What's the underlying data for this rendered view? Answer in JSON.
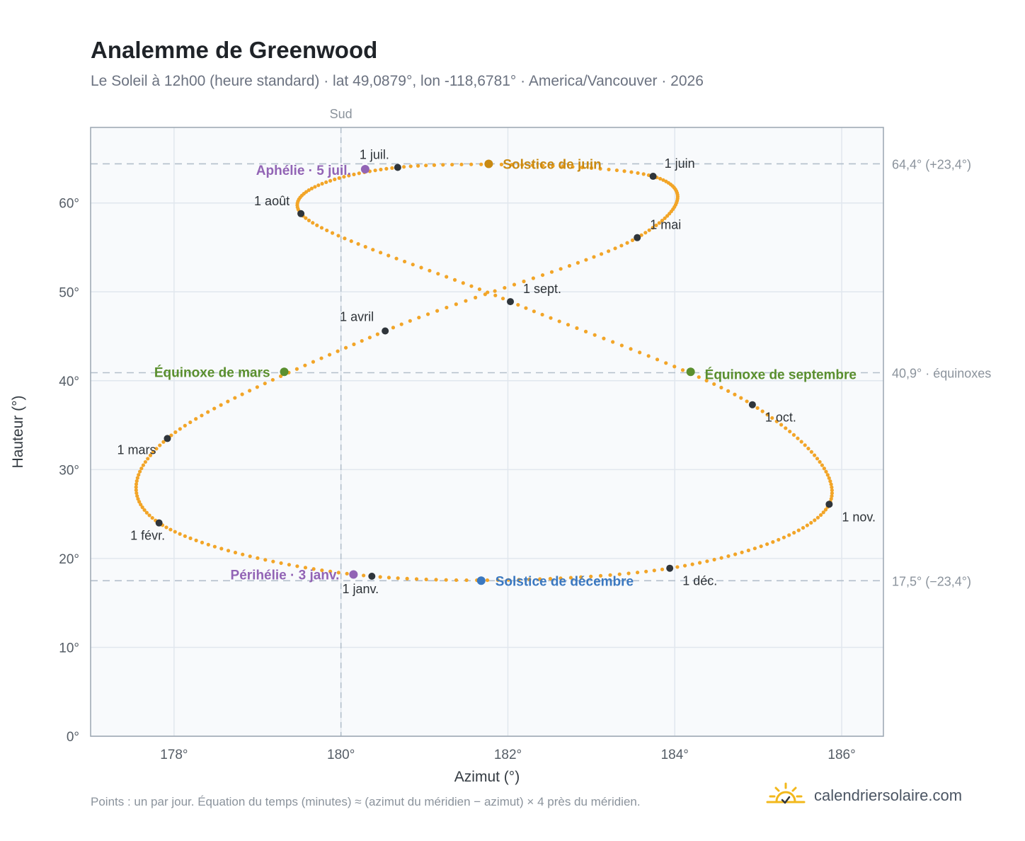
{
  "title": "Analemme de Greenwood",
  "subtitle": "Le Soleil à 12h00 (heure standard) · lat 49,0879°, lon -118,6781° · America/Vancouver · 2026",
  "footer_note": "Points : un par jour. Équation du temps (minutes) ≈ (azimut du méridien − azimut) × 4 près du méridien.",
  "brand": {
    "name": "calendriersolaire.com",
    "icon": "sun-calendar-logo-icon"
  },
  "colors": {
    "trace": "#f2a528",
    "month_marker": "#2f353b",
    "solstice_june": "#c98a12",
    "solstice_december": "#3b78c0",
    "equinox": "#5a8f2e",
    "apsis": "#9264b5",
    "plot_bg": "#f8fafc",
    "grid": "#e1e7ee",
    "ref_line": "#b3bfcb"
  },
  "chart_data": {
    "type": "scatter",
    "xlabel": "Azimut (°)",
    "ylabel": "Hauteur (°)",
    "xlim": [
      177.0,
      186.5
    ],
    "ylim": [
      0,
      68.5
    ],
    "xticks": [
      178,
      180,
      182,
      184,
      186
    ],
    "xtick_labels": [
      "178°",
      "180°",
      "182°",
      "184°",
      "186°"
    ],
    "yticks": [
      0,
      10,
      20,
      30,
      40,
      50,
      60
    ],
    "ytick_labels": [
      "0°",
      "10°",
      "20°",
      "30°",
      "40°",
      "50°",
      "60°"
    ],
    "grid": true,
    "meridian": {
      "x": 180,
      "label": "Sud"
    },
    "reference_lines": [
      {
        "y": 64.4,
        "label": "64,4° (+23,4°)"
      },
      {
        "y": 40.9,
        "label": "40,9° · équinoxes"
      },
      {
        "y": 17.5,
        "label": "17,5° (−23,4°)"
      }
    ],
    "month_markers": [
      {
        "label": "1 janv.",
        "x": 180.37,
        "y": 18.0
      },
      {
        "label": "1 févr.",
        "x": 177.82,
        "y": 24.0
      },
      {
        "label": "1 mars",
        "x": 177.92,
        "y": 33.5
      },
      {
        "label": "1 avril",
        "x": 180.53,
        "y": 45.6
      },
      {
        "label": "1 mai",
        "x": 183.55,
        "y": 56.1
      },
      {
        "label": "1 juin",
        "x": 183.74,
        "y": 63.0
      },
      {
        "label": "1 juil.",
        "x": 180.68,
        "y": 64.0
      },
      {
        "label": "1 août",
        "x": 179.52,
        "y": 58.8
      },
      {
        "label": "1 sept.",
        "x": 182.03,
        "y": 48.9
      },
      {
        "label": "1 oct.",
        "x": 184.93,
        "y": 37.3
      },
      {
        "label": "1 nov.",
        "x": 185.85,
        "y": 26.1
      },
      {
        "label": "1 déc.",
        "x": 183.94,
        "y": 18.9
      }
    ],
    "events": [
      {
        "label": "Solstice de juin",
        "x": 181.77,
        "y": 64.4,
        "color_key": "solstice_june"
      },
      {
        "label": "Solstice de décembre",
        "x": 181.68,
        "y": 17.5,
        "color_key": "solstice_december"
      },
      {
        "label": "Équinoxe de mars",
        "x": 179.32,
        "y": 41.0,
        "color_key": "equinox"
      },
      {
        "label": "Équinoxe de septembre",
        "x": 184.19,
        "y": 41.0,
        "color_key": "equinox"
      },
      {
        "label": "Aphélie · 5 juil.",
        "x": 180.29,
        "y": 63.8,
        "color_key": "apsis"
      },
      {
        "label": "Périhélie · 3 janv.",
        "x": 180.15,
        "y": 18.2,
        "color_key": "apsis"
      }
    ],
    "daily_points": {
      "count": 365,
      "description_points": [
        {
          "label": "1 janv.",
          "day": 0
        },
        {
          "label": "1 déc.",
          "day": 334
        }
      ]
    }
  }
}
